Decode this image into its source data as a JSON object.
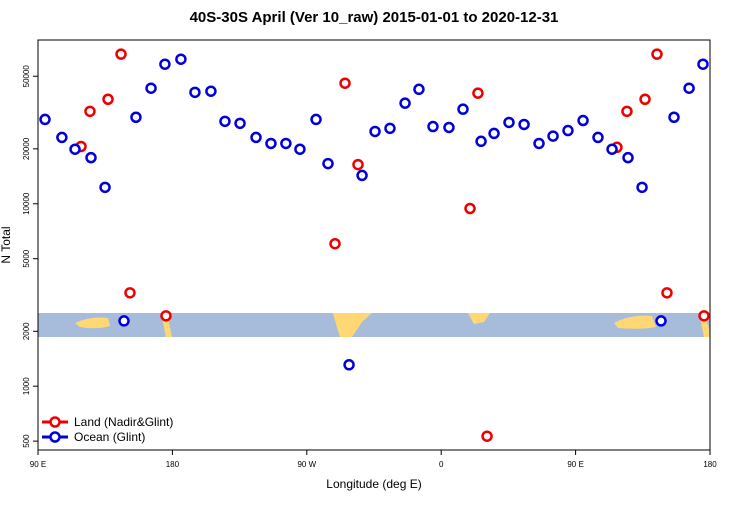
{
  "chart_data": {
    "type": "scatter",
    "title": "40S-30S April (Ver 10_raw)   2015-01-01 to 2020-12-31",
    "x_label": "Longitude (deg E)",
    "y_label": "N Total",
    "log_y": true,
    "legend_position": "bottom-left",
    "xlim": [
      90,
      540
    ],
    "xticks": [
      {
        "value": 90,
        "label": "90 E"
      },
      {
        "value": 180,
        "label": "180"
      },
      {
        "value": 270,
        "label": "90 W"
      },
      {
        "value": 360,
        "label": "0"
      },
      {
        "value": 450,
        "label": "90 E"
      },
      {
        "value": 540,
        "label": "180"
      }
    ],
    "ylim": [
      447,
      79000
    ],
    "yticks": [
      500,
      1000,
      2000,
      5000,
      10000,
      20000,
      50000
    ],
    "series": [
      {
        "name": "Land (Nadir&Glint)",
        "color": "#ee0000",
        "x": [
          118.8,
          124.8,
          136.9,
          145.6,
          151.6,
          175.7,
          288.9,
          295.6,
          304.3,
          379.3,
          384.6,
          390.7,
          477.7,
          484.4,
          496.5,
          504.5,
          511.2,
          536
        ],
        "values": [
          20600,
          32100,
          37400,
          66100,
          3250,
          2430,
          6040,
          45800,
          16400,
          9420,
          40400,
          532,
          20400,
          32100,
          37400,
          66100,
          3250,
          2430
        ]
      },
      {
        "name": "Ocean (Glint)",
        "color": "#0000dd",
        "x": [
          94.7,
          106,
          114.8,
          125.5,
          134.9,
          147.6,
          155.6,
          165.7,
          175,
          185.7,
          195.1,
          205.8,
          215.2,
          225.3,
          236,
          246,
          256,
          265.4,
          276.2,
          284.2,
          298.3,
          307,
          315.7,
          325.7,
          335.8,
          345.1,
          354.5,
          365.2,
          374.6,
          386.7,
          395.4,
          405.4,
          415.5,
          425.5,
          434.9,
          444.9,
          455,
          465,
          474.4,
          485.1,
          494.5,
          507.2,
          515.9,
          526,
          535.3
        ],
        "values": [
          29000,
          23100,
          19900,
          17900,
          12300,
          2280,
          29800,
          43000,
          58200,
          62000,
          40800,
          41400,
          28300,
          27600,
          23100,
          21400,
          21400,
          19900,
          29000,
          16600,
          1310,
          14300,
          24900,
          25900,
          35600,
          42400,
          26500,
          26200,
          33000,
          22000,
          24300,
          27900,
          27200,
          21400,
          23500,
          25200,
          28600,
          23100,
          19900,
          17900,
          12300,
          2280,
          29800,
          43000,
          58200
        ]
      }
    ]
  }
}
